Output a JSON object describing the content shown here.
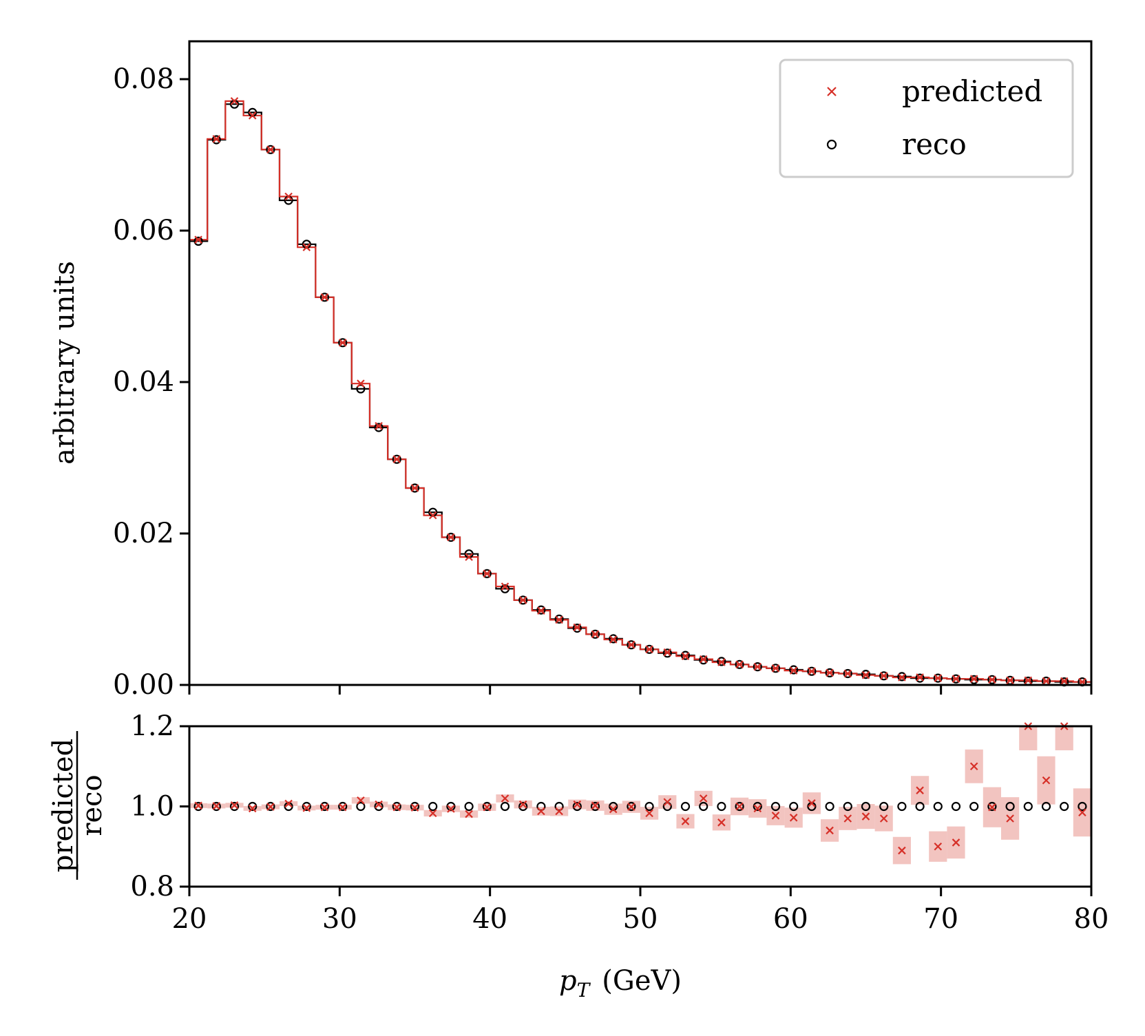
{
  "colors": {
    "predicted": "#d62f27",
    "reco": "#000000",
    "band": "#f2c4c0",
    "frame": "#000000",
    "legend_border": "#cccccc"
  },
  "chart_data": [
    {
      "id": "main",
      "type": "histogram-step",
      "ylabel": "arbitrary units",
      "xlim": [
        20,
        80
      ],
      "ylim": [
        0,
        0.085
      ],
      "yticks": [
        0.0,
        0.02,
        0.04,
        0.06,
        0.08
      ],
      "ytick_labels": [
        "0.00",
        "0.02",
        "0.04",
        "0.06",
        "0.08"
      ],
      "xticks": [
        20,
        30,
        40,
        50,
        60,
        70,
        80
      ],
      "bin_edges": [
        20,
        21.2,
        22.4,
        23.6,
        24.8,
        26,
        27.2,
        28.4,
        29.6,
        30.8,
        32,
        33.2,
        34.4,
        35.6,
        36.8,
        38,
        39.2,
        40.4,
        41.6,
        42.8,
        44,
        45.2,
        46.4,
        47.6,
        48.8,
        50,
        51.2,
        52.4,
        53.6,
        54.8,
        56,
        57.2,
        58.4,
        59.6,
        60.8,
        62,
        63.2,
        64.4,
        65.6,
        66.8,
        68,
        69.2,
        70.4,
        71.6,
        72.8,
        74,
        75.2,
        76.4,
        77.6,
        78.8,
        80
      ],
      "legend": {
        "position": "upper-right",
        "entries": [
          "predicted",
          "reco"
        ]
      },
      "series": [
        {
          "name": "predicted",
          "marker": "x",
          "values": [
            0.0588,
            0.0721,
            0.0771,
            0.0752,
            0.0707,
            0.0645,
            0.0578,
            0.0512,
            0.0452,
            0.0398,
            0.0342,
            0.0298,
            0.026,
            0.0224,
            0.0195,
            0.0169,
            0.0147,
            0.013,
            0.0112,
            0.0098,
            0.0086,
            0.0076,
            0.0067,
            0.006,
            0.0053,
            0.0047,
            0.0043,
            0.0038,
            0.0034,
            0.003,
            0.0027,
            0.0024,
            0.0022,
            0.0019,
            0.0018,
            0.0016,
            0.0015,
            0.0013,
            0.0012,
            0.001,
            0.001,
            0.0009,
            0.0008,
            0.0008,
            0.0007,
            0.0006,
            0.0006,
            0.0005,
            0.0005,
            0.0004
          ]
        },
        {
          "name": "reco",
          "marker": "o",
          "values": [
            0.0586,
            0.072,
            0.0767,
            0.0756,
            0.0707,
            0.064,
            0.0582,
            0.0512,
            0.0452,
            0.0391,
            0.034,
            0.0298,
            0.026,
            0.0228,
            0.0195,
            0.0173,
            0.0147,
            0.0127,
            0.0112,
            0.0099,
            0.0087,
            0.0075,
            0.0067,
            0.0061,
            0.0053,
            0.0047,
            0.0042,
            0.0039,
            0.0033,
            0.0031,
            0.0027,
            0.0024,
            0.0022,
            0.002,
            0.0018,
            0.0016,
            0.0015,
            0.0014,
            0.0012,
            0.0011,
            0.0009,
            0.0009,
            0.0008,
            0.0007,
            0.0007,
            0.0006,
            0.0005,
            0.0005,
            0.0004,
            0.0004
          ]
        }
      ]
    },
    {
      "id": "ratio",
      "type": "ratio-scatter",
      "ylabel_numerator": "predicted",
      "ylabel_denominator": "reco",
      "xlabel_var": "p",
      "xlabel_sub": "T",
      "xlabel_unit": "(GeV)",
      "xlim": [
        20,
        80
      ],
      "ylim": [
        0.8,
        1.2
      ],
      "yticks": [
        0.8,
        1.0,
        1.2
      ],
      "ytick_labels": [
        "0.8",
        "1.0",
        "1.2"
      ],
      "xticks": [
        20,
        30,
        40,
        50,
        60,
        70,
        80
      ],
      "xtick_labels": [
        "20",
        "30",
        "40",
        "50",
        "60",
        "70",
        "80"
      ],
      "reference": 1.0,
      "ratio": [
        1.002,
        1.001,
        1.003,
        0.995,
        0.999,
        1.007,
        0.996,
        0.998,
        0.998,
        1.015,
        1.005,
        0.998,
        0.997,
        0.983,
        0.994,
        0.981,
        0.998,
        1.02,
        1.005,
        0.988,
        0.988,
        1.005,
        1.002,
        0.993,
        0.999,
        0.983,
        1.011,
        0.963,
        1.02,
        0.96,
        1.0,
        0.995,
        0.977,
        0.972,
        1.008,
        0.94,
        0.97,
        0.975,
        0.97,
        0.89,
        1.04,
        0.9,
        0.91,
        1.1,
        0.998,
        0.97,
        1.2,
        1.065,
        1.2,
        0.985
      ],
      "uncertainty": [
        0.006,
        0.006,
        0.006,
        0.006,
        0.006,
        0.006,
        0.006,
        0.006,
        0.006,
        0.008,
        0.007,
        0.007,
        0.007,
        0.008,
        0.008,
        0.009,
        0.009,
        0.01,
        0.01,
        0.011,
        0.012,
        0.012,
        0.013,
        0.014,
        0.015,
        0.016,
        0.017,
        0.018,
        0.019,
        0.02,
        0.022,
        0.023,
        0.024,
        0.025,
        0.027,
        0.028,
        0.029,
        0.031,
        0.032,
        0.034,
        0.036,
        0.038,
        0.04,
        0.042,
        0.05,
        0.053,
        0.06,
        0.06,
        0.06,
        0.06
      ]
    }
  ]
}
